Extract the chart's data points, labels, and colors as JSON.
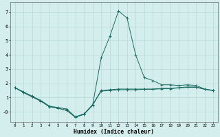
{
  "xlabel": "Humidex (Indice chaleur)",
  "background_color": "#d4eeed",
  "grid_color": "#b8d8d5",
  "line_color": "#1a6b60",
  "x_values": [
    0,
    1,
    2,
    3,
    4,
    5,
    6,
    7,
    8,
    9,
    10,
    11,
    12,
    13,
    14,
    15,
    16,
    17,
    18,
    19,
    20,
    21,
    22,
    23
  ],
  "line1": [
    1.7,
    1.4,
    1.1,
    0.8,
    0.4,
    0.3,
    0.2,
    -0.35,
    -0.15,
    0.5,
    1.5,
    1.55,
    1.6,
    1.6,
    1.6,
    1.6,
    1.6,
    1.65,
    1.65,
    1.7,
    1.75,
    1.75,
    1.6,
    1.5
  ],
  "line2": [
    1.7,
    1.35,
    1.05,
    0.75,
    0.35,
    0.25,
    0.1,
    -0.38,
    -0.18,
    0.45,
    3.8,
    5.3,
    7.1,
    6.6,
    4.0,
    2.4,
    2.2,
    1.9,
    1.9,
    1.85,
    1.9,
    1.85,
    1.6,
    1.5
  ],
  "line3": [
    1.7,
    1.35,
    1.05,
    0.75,
    0.35,
    0.25,
    0.1,
    -0.38,
    -0.18,
    0.45,
    1.45,
    1.5,
    1.55,
    1.55,
    1.55,
    1.58,
    1.58,
    1.62,
    1.62,
    1.68,
    1.72,
    1.72,
    1.58,
    1.48
  ],
  "ylim": [
    -0.7,
    7.7
  ],
  "xlim": [
    -0.5,
    23.5
  ],
  "yticks": [
    0,
    1,
    2,
    3,
    4,
    5,
    6,
    7
  ],
  "ytick_labels": [
    "-0",
    "1",
    "2",
    "3",
    "4",
    "5",
    "6",
    "7"
  ],
  "xticks": [
    0,
    1,
    2,
    3,
    4,
    5,
    6,
    7,
    8,
    9,
    10,
    11,
    12,
    13,
    14,
    15,
    16,
    17,
    18,
    19,
    20,
    21,
    22,
    23
  ]
}
